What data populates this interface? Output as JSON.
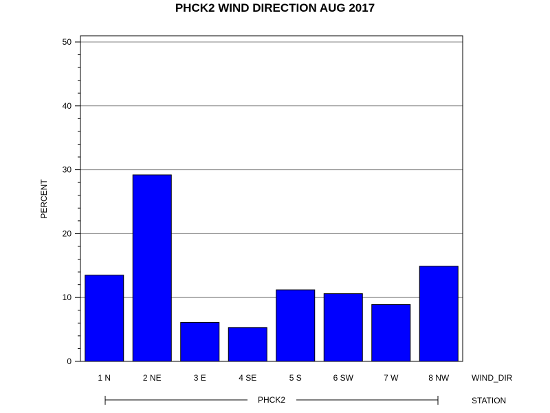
{
  "chart_data": {
    "type": "bar",
    "title": "PHCK2 WIND DIRECTION AUG 2017",
    "ylabel": "PERCENT",
    "x_axis_name": "WIND_DIR",
    "group_axis_name": "STATION",
    "group_label": "PHCK2",
    "categories": [
      "1 N",
      "2 NE",
      "3 E",
      "4 SE",
      "5 S",
      "6 SW",
      "7 W",
      "8 NW"
    ],
    "values": [
      13.5,
      29.2,
      6.1,
      5.3,
      11.2,
      10.6,
      8.9,
      14.9
    ],
    "ylim": [
      0,
      50
    ],
    "yticks": [
      "0",
      "10",
      "20",
      "30",
      "40",
      "50"
    ],
    "grid": true,
    "bar_color": "#0000ff"
  }
}
